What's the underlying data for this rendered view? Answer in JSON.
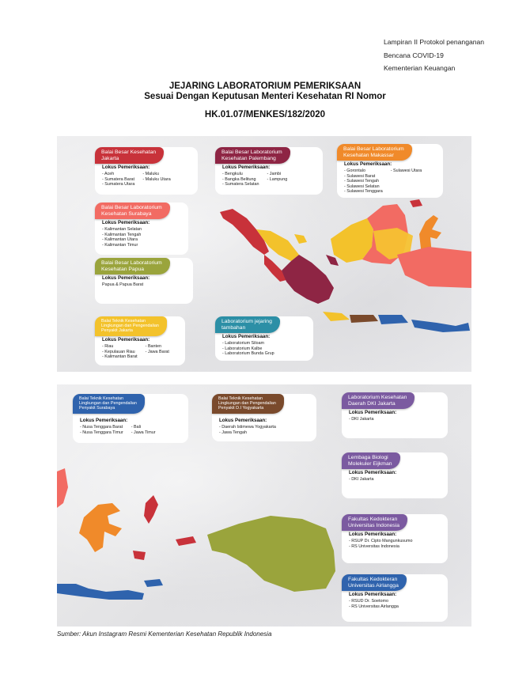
{
  "header_note": [
    "Lampiran II Protokol penanganan",
    "Bencana COVID-19",
    "Kementerian Keuangan"
  ],
  "title": {
    "line1": "JEJARING LABORATORIUM PEMERIKSAAN",
    "line2": "Sesuai Dengan Keputusan Menteri Kesehatan RI Nomor",
    "line3": "HK.01.07/MENKES/182/2020"
  },
  "lokus_label": "Lokus Pemeriksaan:",
  "top_cards": {
    "jakarta": {
      "title": [
        "Balai Besar Kesehatan",
        "Jakarta"
      ],
      "col1": [
        "- Aceh",
        "- Sumatera Barat",
        "- Sumatera Utara"
      ],
      "col2": [
        "- Maluku",
        "- Maluku Utara"
      ],
      "color": "#c8323a"
    },
    "palembang": {
      "title": [
        "Balai Besar Laboratorium",
        "Kesehatan Palembang"
      ],
      "col1": [
        "- Bengkulu",
        "- Bangka Belitung",
        "- Sumatera Selatan"
      ],
      "col2": [
        "- Jambi",
        "- Lampung"
      ],
      "color": "#8e2544"
    },
    "makassar": {
      "title": [
        "Balai Besar Laboratorium",
        "Kesehatan Makassar"
      ],
      "col1": [
        "- Gorontalo",
        "- Sulawesi Barat",
        "- Sulawesi Tengah",
        "- Sulawesi Selatan",
        "- Sulawesi Tenggara"
      ],
      "col2": [
        "- Sulawesi Utara"
      ],
      "color": "#f08a2a"
    },
    "surabaya": {
      "title": [
        "Balai Besar Laboratorium",
        "Kesehatan Surabaya"
      ],
      "col1": [
        "- Kalimantan Selatan",
        "- Kalimantan Tengah",
        "- Kalimantan Utara",
        "- Kalimantan Timur"
      ],
      "color": "#f26b63"
    },
    "papua": {
      "title": [
        "Balai Besar Laboratorium",
        "Kesehatan Papua"
      ],
      "col1": [
        "Papua & Papua Barat"
      ],
      "color": "#9aa43c"
    },
    "btkl_jakarta": {
      "title": [
        "Balai Teknik Kesehatan",
        "Lingkungan dan Pengendalian",
        "Penyakit Jakarta"
      ],
      "col1": [
        "- Riau",
        "- Kepulauan Riau",
        "- Kalimantan Barat"
      ],
      "col2": [
        "- Banten",
        "- Jawa Barat"
      ],
      "color": "#f3c22b"
    },
    "tambahan": {
      "title": [
        "Laboratorium jejaring",
        "tambahan"
      ],
      "col1": [
        "- Laboratorium Siloam",
        "- Laboratorium Kalbe",
        "- Laboratorium Bunda Grup"
      ],
      "color": "#2c8fa6"
    }
  },
  "bottom_cards": {
    "btkl_surabaya": {
      "title": [
        "Balai Teknik Kesehatan",
        "Lingkungan dan Pengendalian",
        "Penyakit Surabaya"
      ],
      "col1": [
        "- Nusa Tenggara Barat",
        "- Nusa Tenggara Timur"
      ],
      "col2": [
        "- Bali",
        "- Jawa Timur"
      ],
      "color": "#2f63ad"
    },
    "btkl_yogya": {
      "title": [
        "Balai Teknik Kesehatan",
        "Lingkungan dan Pengendalian",
        "Penyakit D.I Yogyakarta"
      ],
      "col1": [
        "- Daerah Istimewa Yogyakarta",
        "- Jawa Tengah"
      ],
      "color": "#7a4a2c"
    },
    "dki": {
      "title": [
        "Laboratorium Kesehatan",
        "Daerah DKI Jakarta"
      ],
      "col1": [
        "- DKI Jakarta"
      ],
      "color": "#7b5aa0"
    },
    "eijkman": {
      "title": [
        "Lembaga Biologi",
        "Molekuler Eijkman"
      ],
      "col1": [
        "- DKI Jakarta"
      ],
      "color": "#7b5aa0"
    },
    "ui": {
      "title": [
        "Fakultas Kedokteran",
        "Universitas Indonesia"
      ],
      "col1": [
        "- RSUP Dr. Cipto Mangunkusumo",
        "- RS Universitas Indonesia"
      ],
      "color": "#7b5aa0"
    },
    "airlangga": {
      "title": [
        "Fakultas Kedokteran",
        "Universitas Airlangga"
      ],
      "col1": [
        "- RSUD Dr. Soetomo",
        "- RS Universitas Airlangga"
      ],
      "color": "#2f63ad"
    }
  },
  "source": "Sumber: Akun Instagram Resmi Kementerian Kesehatan Republik Indonesia"
}
